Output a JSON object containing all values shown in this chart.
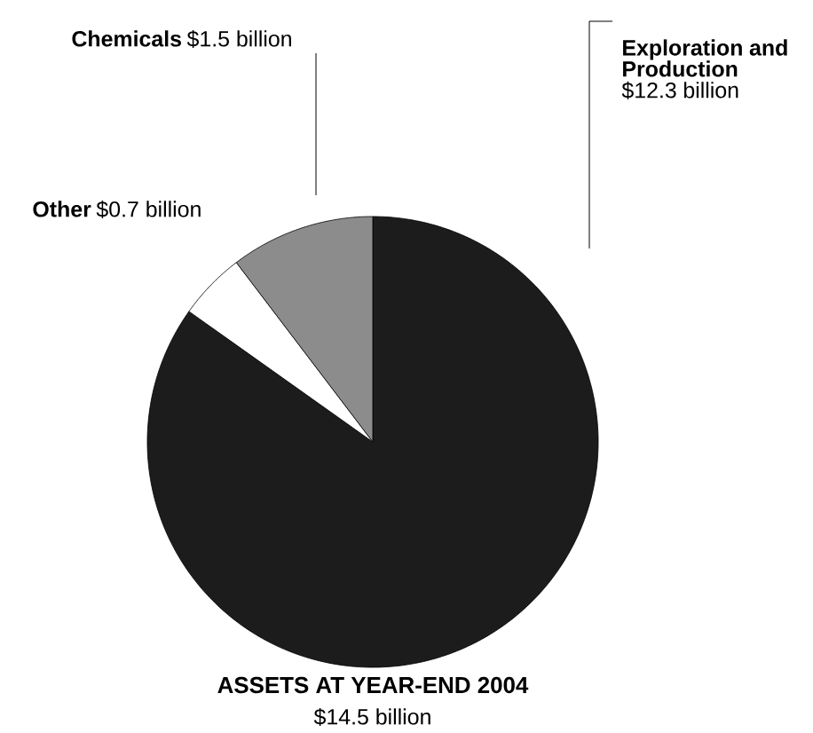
{
  "chart_data": {
    "type": "pie",
    "title": "ASSETS AT YEAR-END 2004",
    "subtitle": "$14.5 billion",
    "categories": [
      "Exploration and Production",
      "Other",
      "Chemicals"
    ],
    "values": [
      12.3,
      0.7,
      1.5
    ],
    "colors": [
      "#1c1c1c",
      "#ffffff",
      "#8c8c8c"
    ],
    "value_labels": [
      "$12.3 billion",
      "$0.7 billion",
      "$1.5 billion"
    ]
  }
}
